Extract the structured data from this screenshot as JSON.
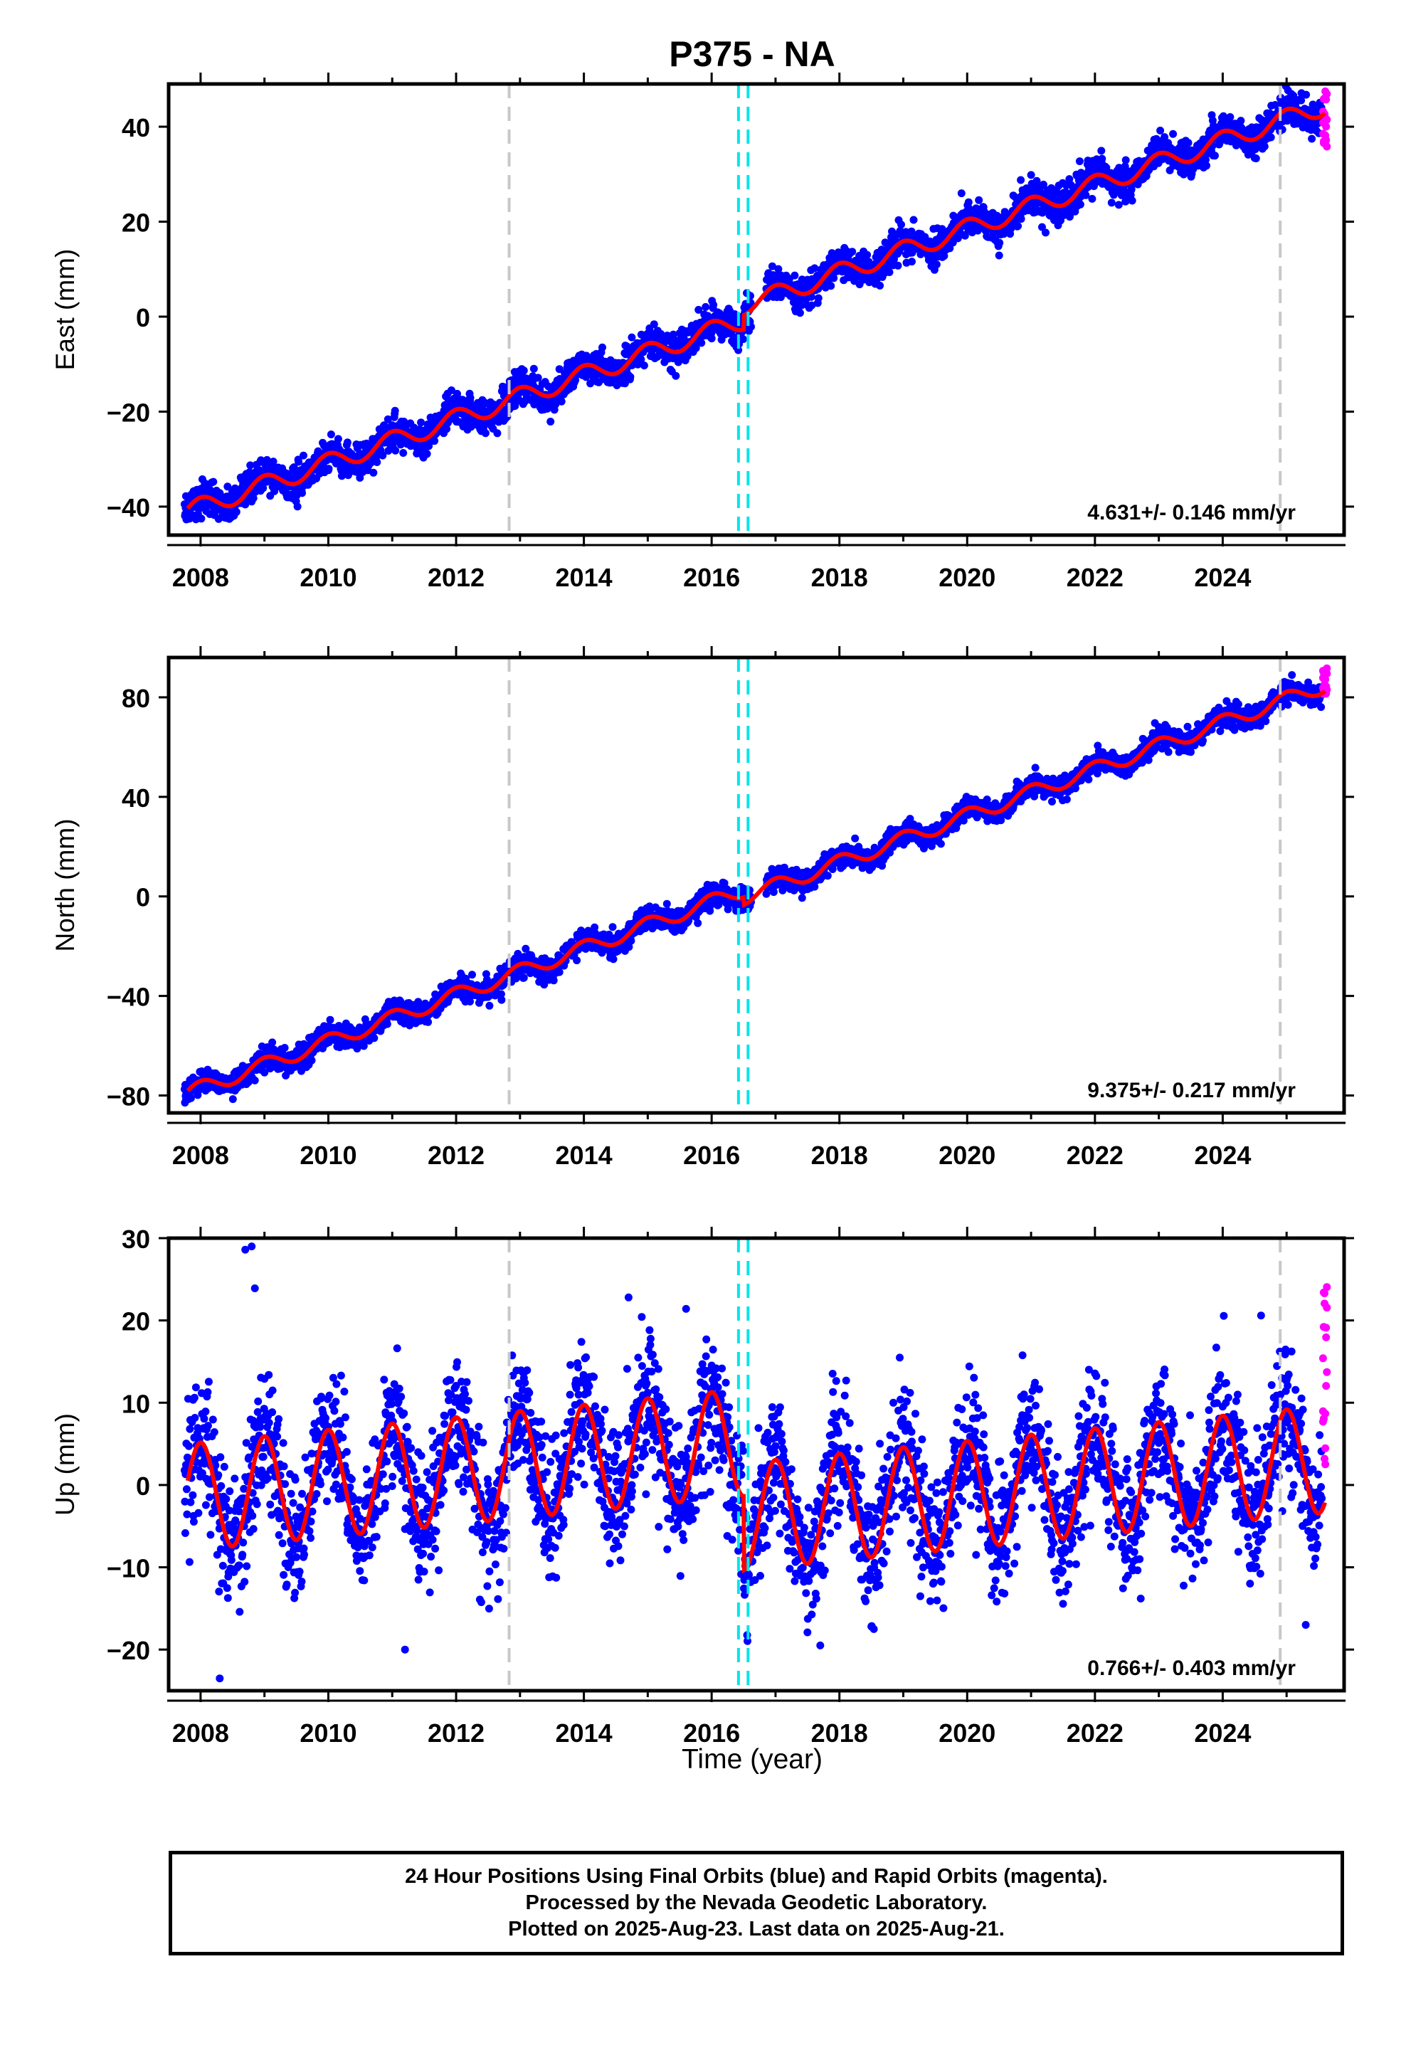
{
  "title": "P375 - NA",
  "xlabel": "Time (year)",
  "footer": {
    "line1": "24 Hour Positions Using Final Orbits (blue) and Rapid Orbits (magenta).",
    "line2": "Processed by the Nevada Geodetic Laboratory.",
    "line3": "Plotted on 2025-Aug-23. Last data on 2025-Aug-21."
  },
  "colors": {
    "final_orbits": "#0000ff",
    "rapid_orbits": "#ff00ff",
    "model_fit": "#ff0000",
    "equipment_change": "#c8c8c8",
    "earthquake": "#00e5ee"
  },
  "chart_data": [
    {
      "type": "scatter",
      "component": "east",
      "ylabel": "East (mm)",
      "rate_label": "4.631+/- 0.146 mm/yr",
      "xlim": [
        2007.5,
        2025.9
      ],
      "ylim": [
        -46,
        49
      ],
      "xticks": [
        2008,
        2010,
        2012,
        2014,
        2016,
        2018,
        2020,
        2022,
        2024
      ],
      "yticks": [
        -40,
        -20,
        0,
        20,
        40
      ],
      "grid": false,
      "model": {
        "rate": 4.631,
        "y_at_2007_8": -41,
        "offset_2016_5": 3.0,
        "annual_amp": 2.0,
        "amp_trend": 0
      },
      "scatter": 1.8,
      "rapid_range": [
        35.5,
        47.5
      ],
      "vlines_gray": [
        2012.83,
        2024.9
      ],
      "vlines_cyan": [
        2016.42,
        2016.57
      ]
    },
    {
      "type": "scatter",
      "component": "north",
      "ylabel": "North (mm)",
      "rate_label": "9.375+/- 0.217 mm/yr",
      "xlim": [
        2007.5,
        2025.9
      ],
      "ylim": [
        -87,
        96
      ],
      "xticks": [
        2008,
        2010,
        2012,
        2014,
        2016,
        2018,
        2020,
        2022,
        2024
      ],
      "yticks": [
        -80,
        -40,
        0,
        40,
        80
      ],
      "grid": false,
      "model": {
        "rate": 9.375,
        "y_at_2007_8": -79,
        "offset_2016_5": -3.0,
        "annual_amp": 3.0,
        "amp_trend": 0
      },
      "scatter": 2.2,
      "rapid_range": [
        81,
        92
      ],
      "vlines_gray": [
        2012.83,
        2024.9
      ],
      "vlines_cyan": [
        2016.42,
        2016.57
      ]
    },
    {
      "type": "scatter",
      "component": "up",
      "ylabel": "Up (mm)",
      "rate_label": "0.766+/- 0.403 mm/yr",
      "xlim": [
        2007.5,
        2025.9
      ],
      "ylim": [
        -25,
        30
      ],
      "xticks": [
        2008,
        2010,
        2012,
        2014,
        2016,
        2018,
        2020,
        2022,
        2024
      ],
      "yticks": [
        -20,
        -10,
        0,
        10,
        20,
        30
      ],
      "grid": false,
      "model": {
        "rate": 0.766,
        "y_at_2007_8": -1.5,
        "offset_2016_5": -9.0,
        "annual_amp": 6.5,
        "amp_trend": 0.0
      },
      "scatter": 4.0,
      "rapid_range": [
        2,
        24.5
      ],
      "outliers": [
        [
          2008.7,
          28.6
        ],
        [
          2008.8,
          29.0
        ],
        [
          2008.85,
          23.9
        ],
        [
          2008.3,
          -23.5
        ],
        [
          2014.7,
          22.8
        ],
        [
          2015.6,
          21.4
        ],
        [
          2011.2,
          -20.0
        ],
        [
          2017.7,
          -19.5
        ],
        [
          2024.6,
          20.6
        ],
        [
          2025.3,
          -17.0
        ]
      ],
      "vlines_gray": [
        2012.83,
        2024.9
      ],
      "vlines_cyan": [
        2016.42,
        2016.57
      ]
    }
  ]
}
